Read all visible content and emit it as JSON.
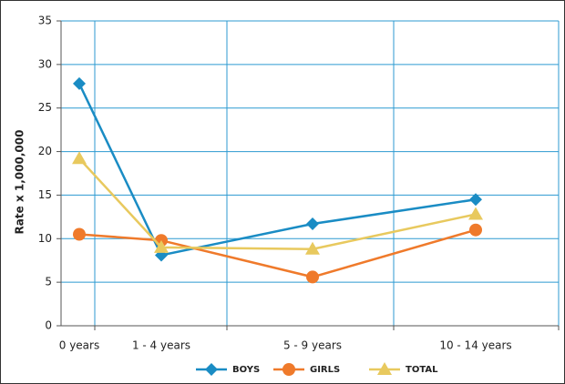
{
  "chart_data": {
    "type": "line",
    "y_label": "Rate x 1,000,000",
    "categories": [
      "0 years",
      "1 - 4 years",
      "5 - 9 years",
      "10 - 14 years"
    ],
    "series": [
      {
        "name": "BOYS",
        "color": "#1a8cc4",
        "marker": "diamond",
        "values": [
          27.8,
          8.1,
          11.7,
          14.5
        ]
      },
      {
        "name": "GIRLS",
        "color": "#ef7a2b",
        "marker": "circle",
        "values": [
          10.5,
          9.8,
          5.6,
          11.0
        ]
      },
      {
        "name": "TOTAL",
        "color": "#e8c95e",
        "marker": "triangle",
        "values": [
          19.2,
          9.0,
          8.8,
          12.8
        ]
      }
    ],
    "ylim": [
      0,
      35
    ],
    "yticks": [
      0,
      5,
      10,
      15,
      20,
      25,
      30,
      35
    ],
    "grid": true,
    "legend": "bottom"
  }
}
